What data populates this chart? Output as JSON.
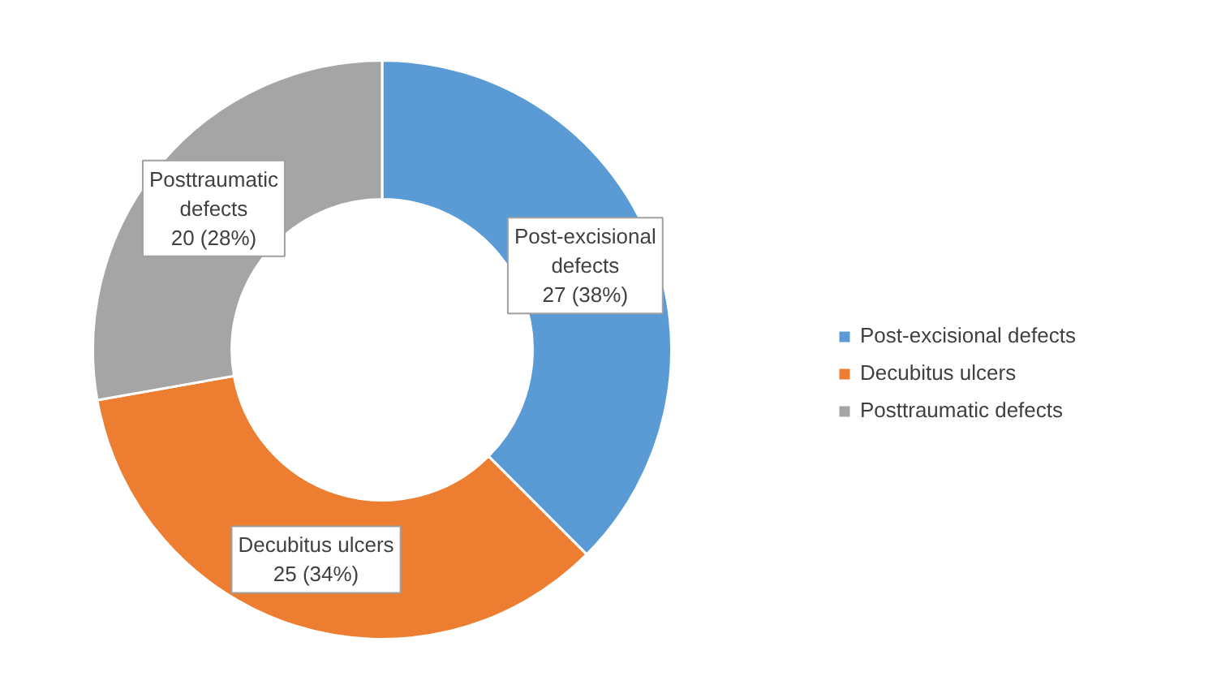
{
  "chart_data": {
    "type": "donut",
    "categories": [
      "Post-excisional defects",
      "Decubitus ulcers",
      "Posttraumatic defects"
    ],
    "values": [
      27,
      25,
      20
    ],
    "value_labels": [
      "27 (38%)",
      "25 (34%)",
      "20 (28%)"
    ],
    "colors": [
      "#5b9bd5",
      "#ed7d31",
      "#a5a5a5"
    ],
    "data_labels": true,
    "legend": "right"
  }
}
